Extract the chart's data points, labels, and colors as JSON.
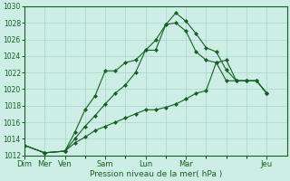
{
  "xlabel": "Pression niveau de la mer( hPa )",
  "background_color": "#cceee4",
  "grid_color": "#aad4c8",
  "line_color": "#1a5c2a",
  "ylim": [
    1012,
    1030
  ],
  "yticks": [
    1012,
    1014,
    1016,
    1018,
    1020,
    1022,
    1024,
    1026,
    1028
  ],
  "x_tick_positions": [
    0,
    1,
    2,
    4,
    6,
    8,
    12
  ],
  "x_tick_labels": [
    "Dim",
    "Mer",
    "Ven",
    "Sam",
    "Lun",
    "Mar",
    "Jeu"
  ],
  "xlim": [
    0,
    13
  ],
  "series1_x": [
    0,
    1,
    2,
    2.5,
    3,
    3.5,
    4,
    4.5,
    5,
    5.5,
    6,
    6.5,
    7,
    7.5,
    8,
    8.5,
    9,
    9.5,
    10,
    10.5,
    11,
    11.5,
    12
  ],
  "series1_y": [
    1013.2,
    1012.3,
    1012.5,
    1014.8,
    1017.5,
    1019.2,
    1022.2,
    1022.2,
    1023.2,
    1023.5,
    1024.7,
    1025.9,
    1027.8,
    1029.2,
    1028.2,
    1026.7,
    1025.0,
    1024.5,
    1022.3,
    1021.0,
    1021.0,
    1021.0,
    1019.5
  ],
  "series2_x": [
    0,
    1,
    2,
    2.5,
    3,
    3.5,
    4,
    4.5,
    5,
    5.5,
    6,
    6.5,
    7,
    7.5,
    8,
    8.5,
    9,
    9.5,
    10,
    10.5,
    11,
    11.5,
    12
  ],
  "series2_y": [
    1013.2,
    1012.3,
    1012.5,
    1014.0,
    1015.5,
    1016.8,
    1018.2,
    1019.5,
    1020.5,
    1022.0,
    1024.7,
    1024.7,
    1027.8,
    1028.0,
    1027.0,
    1024.5,
    1023.5,
    1023.2,
    1021.0,
    1021.0,
    1021.0,
    1021.0,
    1019.5
  ],
  "series3_x": [
    0,
    1,
    2,
    2.5,
    3,
    3.5,
    4,
    4.5,
    5,
    5.5,
    6,
    6.5,
    7,
    7.5,
    8,
    8.5,
    9,
    9.5,
    10,
    10.5,
    11,
    11.5,
    12
  ],
  "series3_y": [
    1013.2,
    1012.3,
    1012.5,
    1013.5,
    1014.2,
    1015.0,
    1015.5,
    1016.0,
    1016.5,
    1017.0,
    1017.5,
    1017.5,
    1017.8,
    1018.2,
    1018.8,
    1019.5,
    1019.8,
    1023.2,
    1023.5,
    1021.0,
    1021.0,
    1021.0,
    1019.5
  ]
}
